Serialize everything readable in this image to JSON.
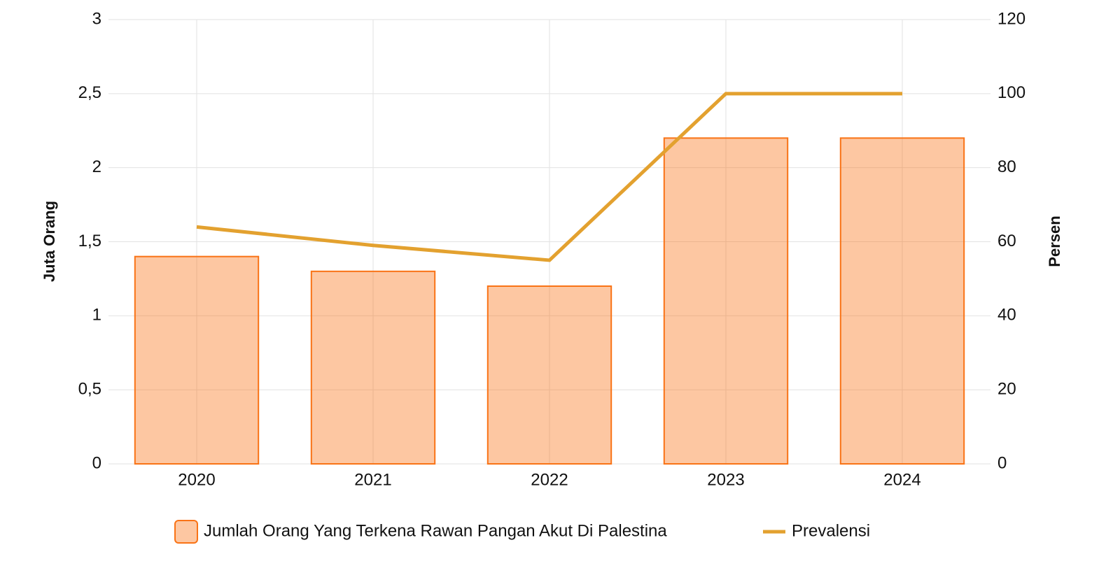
{
  "chart_data": {
    "type": "bar",
    "categories": [
      "2020",
      "2021",
      "2022",
      "2023",
      "2024"
    ],
    "series": [
      {
        "name": "Jumlah Orang Yang Terkena Rawan Pangan Akut Di Palestina",
        "type": "bar",
        "color": "#f97316",
        "values": [
          1.4,
          1.3,
          1.2,
          2.2,
          2.2
        ]
      },
      {
        "name": "Prevalensi",
        "type": "line",
        "axis": "y2",
        "color": "#e3a12f",
        "values": [
          64,
          59,
          55,
          100,
          100
        ]
      }
    ],
    "ylabel": "Juta Orang",
    "y2label": "Persen",
    "ylim": [
      0,
      3
    ],
    "yticks": [
      0,
      {
        "value": 0.5,
        "label": "0,5"
      },
      1,
      {
        "value": 1.5,
        "label": "1,5"
      },
      2,
      {
        "value": 2.5,
        "label": "2,5"
      },
      3
    ],
    "y2lim": [
      0,
      120
    ],
    "y2ticks": [
      0,
      20,
      40,
      60,
      80,
      100,
      120
    ],
    "grid": true,
    "legend": "bottom"
  }
}
